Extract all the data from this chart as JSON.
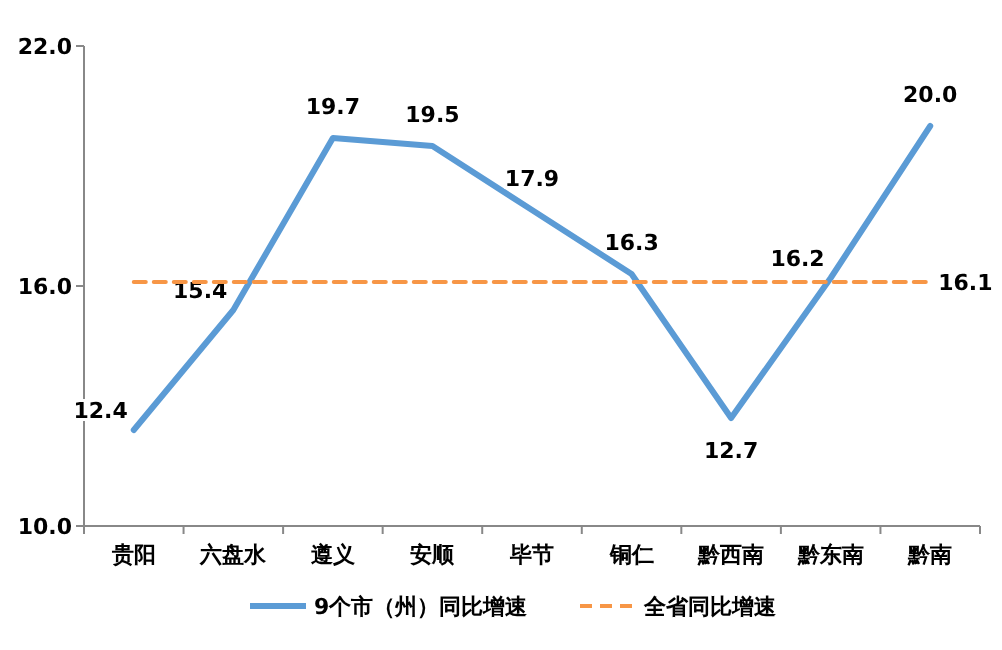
{
  "chart_data": {
    "type": "line",
    "categories": [
      "贵阳",
      "六盘水",
      "遵义",
      "安顺",
      "毕节",
      "铜仁",
      "黔西南",
      "黔东南",
      "黔南"
    ],
    "series": [
      {
        "name": "9个市（州）同比增速",
        "color": "#5b9bd5",
        "line_style": "solid",
        "values": [
          12.4,
          15.4,
          19.7,
          19.5,
          17.9,
          16.3,
          12.7,
          16.2,
          20.0
        ],
        "value_labels": [
          "12.4",
          "15.4",
          "19.7",
          "19.5",
          "17.9",
          "16.3",
          "12.7",
          "16.2",
          "20.0"
        ]
      },
      {
        "name": "全省同比增速",
        "color": "#f79646",
        "line_style": "dashed",
        "values": [
          16.1,
          16.1,
          16.1,
          16.1,
          16.1,
          16.1,
          16.1,
          16.1,
          16.1
        ],
        "value_labels": [
          null,
          null,
          null,
          null,
          null,
          null,
          null,
          null,
          "16.1"
        ]
      }
    ],
    "ylim": [
      10,
      22
    ],
    "yticks": [
      {
        "value": 10,
        "label": "10.0"
      },
      {
        "value": 16,
        "label": "16.0"
      },
      {
        "value": 22,
        "label": "22.0"
      }
    ],
    "legend": "bottom",
    "marker": "none",
    "grid": false
  }
}
